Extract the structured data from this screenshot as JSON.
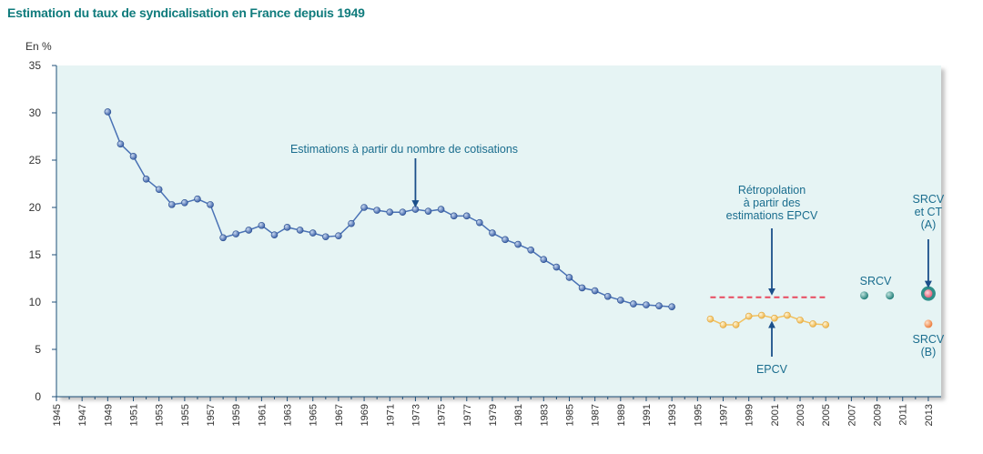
{
  "title": "Estimation du taux de syndicalisation en France depuis 1949",
  "colors": {
    "title": "#0f7b7c",
    "plot_bg": "#e6f4f4",
    "axis": "#1f4f78",
    "cotisations": "#4a72b5",
    "epcv": "#f2c25f",
    "retropolation": "#e84a5f",
    "srcv": "#2f8f8a",
    "srcv_b": "#f08a4b",
    "annotation": "#1a6d8e",
    "arrow": "#1b4f8a"
  },
  "chart_data": {
    "type": "scatter",
    "ylabel": "En %",
    "ylim": [
      0,
      35
    ],
    "yticks": [
      0,
      5,
      10,
      15,
      20,
      25,
      30,
      35
    ],
    "xlim": [
      1945,
      2014
    ],
    "xticks": [
      1945,
      1947,
      1949,
      1951,
      1953,
      1955,
      1957,
      1959,
      1961,
      1963,
      1965,
      1967,
      1969,
      1971,
      1973,
      1975,
      1977,
      1979,
      1981,
      1983,
      1985,
      1987,
      1989,
      1991,
      1993,
      1995,
      1997,
      1999,
      2001,
      2003,
      2005,
      2007,
      2009,
      2011,
      2013
    ],
    "series": [
      {
        "key": "cotisations",
        "type": "line",
        "x": [
          1949,
          1950,
          1951,
          1952,
          1953,
          1954,
          1955,
          1956,
          1957,
          1958,
          1959,
          1960,
          1961,
          1962,
          1963,
          1964,
          1965,
          1966,
          1967,
          1968,
          1969,
          1970,
          1971,
          1972,
          1973,
          1974,
          1975,
          1976,
          1977,
          1978,
          1979,
          1980,
          1981,
          1982,
          1983,
          1984,
          1985,
          1986,
          1987,
          1988,
          1989,
          1990,
          1991,
          1992,
          1993
        ],
        "y": [
          30.1,
          26.7,
          25.4,
          23.0,
          21.9,
          20.3,
          20.5,
          20.9,
          20.3,
          16.8,
          17.2,
          17.6,
          18.1,
          17.1,
          17.9,
          17.6,
          17.3,
          16.9,
          17.0,
          18.3,
          20.0,
          19.7,
          19.5,
          19.5,
          19.8,
          19.6,
          19.8,
          19.1,
          19.1,
          18.4,
          17.3,
          16.6,
          16.1,
          15.5,
          14.5,
          13.7,
          12.6,
          11.5,
          11.2,
          10.6,
          10.2,
          9.8,
          9.7,
          9.6,
          9.5
        ]
      },
      {
        "key": "epcv",
        "type": "line",
        "x": [
          1996,
          1997,
          1998,
          1999,
          2000,
          2001,
          2002,
          2003,
          2004,
          2005
        ],
        "y": [
          8.2,
          7.6,
          7.6,
          8.5,
          8.6,
          8.3,
          8.6,
          8.1,
          7.7,
          7.6
        ]
      },
      {
        "key": "retropolation",
        "type": "dashed",
        "x": [
          1996,
          2005
        ],
        "y": [
          10.5,
          10.5
        ]
      },
      {
        "key": "srcv",
        "type": "scatter",
        "x": [
          2008,
          2010
        ],
        "y": [
          10.7,
          10.7
        ]
      },
      {
        "key": "srcv_ct_a",
        "type": "scatter",
        "x": [
          2013
        ],
        "y": [
          10.9
        ]
      },
      {
        "key": "srcv_b",
        "type": "scatter",
        "x": [
          2013
        ],
        "y": [
          7.7
        ]
      }
    ],
    "annotations": {
      "cotisations": "Estimations à partir du nombre de cotisations",
      "retropolation": [
        "Rétropolation",
        "à partir des",
        "estimations EPCV"
      ],
      "epcv": "EPCV",
      "srcv": "SRCV",
      "srcv_ct_a": [
        "SRCV",
        "et CT",
        "(A)"
      ],
      "srcv_b": [
        "SRCV",
        "(B)"
      ]
    }
  }
}
